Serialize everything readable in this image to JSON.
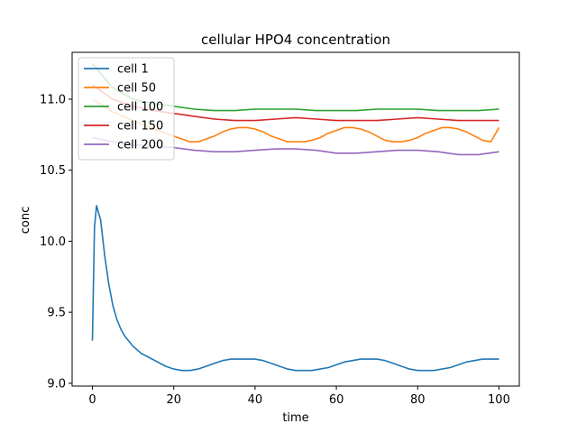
{
  "chart_data": {
    "type": "line",
    "title": "cellular HPO4 concentration",
    "xlabel": "time",
    "ylabel": "conc",
    "xlim": [
      -5,
      105
    ],
    "ylim": [
      8.98,
      11.33
    ],
    "xticks": [
      0,
      20,
      40,
      60,
      80,
      100
    ],
    "yticks": [
      9.0,
      9.5,
      10.0,
      10.5,
      11.0
    ],
    "xtick_labels": [
      "0",
      "20",
      "40",
      "60",
      "80",
      "100"
    ],
    "ytick_labels": [
      "9.0",
      "9.5",
      "10.0",
      "10.5",
      "11.0"
    ],
    "legend_position": "upper-left",
    "grid": false,
    "series": [
      {
        "name": "cell 1",
        "color": "#1f77b4",
        "x": [
          0,
          0.5,
          1,
          1.5,
          2,
          3,
          4,
          5,
          6,
          7,
          8,
          10,
          12,
          14,
          16,
          18,
          20,
          22,
          24,
          26,
          28,
          30,
          32,
          34,
          36,
          38,
          40,
          42,
          44,
          46,
          48,
          50,
          52,
          54,
          56,
          58,
          60,
          62,
          64,
          66,
          68,
          70,
          72,
          74,
          76,
          78,
          80,
          82,
          84,
          86,
          88,
          90,
          92,
          94,
          96,
          98,
          100
        ],
        "y": [
          9.3,
          10.1,
          10.25,
          10.2,
          10.15,
          9.9,
          9.7,
          9.55,
          9.45,
          9.38,
          9.33,
          9.26,
          9.21,
          9.18,
          9.15,
          9.12,
          9.1,
          9.09,
          9.09,
          9.1,
          9.12,
          9.14,
          9.16,
          9.17,
          9.17,
          9.17,
          9.17,
          9.16,
          9.14,
          9.12,
          9.1,
          9.09,
          9.09,
          9.09,
          9.1,
          9.11,
          9.13,
          9.15,
          9.16,
          9.17,
          9.17,
          9.17,
          9.16,
          9.14,
          9.12,
          9.1,
          9.09,
          9.09,
          9.09,
          9.1,
          9.11,
          9.13,
          9.15,
          9.16,
          9.17,
          9.17,
          9.17
        ]
      },
      {
        "name": "cell 50",
        "color": "#ff7f0e",
        "x": [
          0,
          5,
          10,
          15,
          18,
          20,
          22,
          24,
          26,
          28,
          30,
          32,
          34,
          36,
          38,
          40,
          42,
          44,
          46,
          48,
          50,
          52,
          54,
          56,
          58,
          60,
          62,
          64,
          66,
          68,
          70,
          72,
          74,
          76,
          78,
          80,
          82,
          84,
          86,
          88,
          90,
          92,
          94,
          96,
          98,
          100
        ],
        "y": [
          11.0,
          10.91,
          10.85,
          10.79,
          10.76,
          10.74,
          10.72,
          10.7,
          10.7,
          10.72,
          10.74,
          10.77,
          10.79,
          10.8,
          10.8,
          10.79,
          10.77,
          10.74,
          10.72,
          10.7,
          10.7,
          10.7,
          10.71,
          10.73,
          10.76,
          10.78,
          10.8,
          10.8,
          10.79,
          10.77,
          10.74,
          10.71,
          10.7,
          10.7,
          10.71,
          10.73,
          10.76,
          10.78,
          10.8,
          10.8,
          10.79,
          10.77,
          10.74,
          10.71,
          10.7,
          10.8
        ]
      },
      {
        "name": "cell 100",
        "color": "#2ca02c",
        "x": [
          0,
          5,
          10,
          15,
          20,
          25,
          30,
          35,
          40,
          45,
          50,
          55,
          60,
          65,
          70,
          75,
          80,
          85,
          90,
          95,
          100
        ],
        "y": [
          11.25,
          11.08,
          11.0,
          10.97,
          10.95,
          10.93,
          10.92,
          10.92,
          10.93,
          10.93,
          10.93,
          10.92,
          10.92,
          10.92,
          10.93,
          10.93,
          10.93,
          10.92,
          10.92,
          10.92,
          10.93
        ]
      },
      {
        "name": "cell 150",
        "color": "#d62728",
        "x": [
          0,
          5,
          10,
          15,
          20,
          25,
          30,
          35,
          40,
          45,
          50,
          55,
          60,
          65,
          70,
          75,
          80,
          85,
          90,
          95,
          100
        ],
        "y": [
          11.1,
          11.0,
          10.95,
          10.92,
          10.9,
          10.88,
          10.86,
          10.85,
          10.85,
          10.86,
          10.87,
          10.86,
          10.85,
          10.85,
          10.85,
          10.86,
          10.87,
          10.86,
          10.85,
          10.85,
          10.85
        ]
      },
      {
        "name": "cell 200",
        "color": "#9467bd",
        "x": [
          0,
          5,
          10,
          15,
          20,
          25,
          30,
          35,
          40,
          45,
          50,
          55,
          60,
          65,
          70,
          75,
          80,
          85,
          90,
          95,
          100
        ],
        "y": [
          10.73,
          10.7,
          10.68,
          10.67,
          10.66,
          10.64,
          10.63,
          10.63,
          10.64,
          10.65,
          10.65,
          10.64,
          10.62,
          10.62,
          10.63,
          10.64,
          10.64,
          10.63,
          10.61,
          10.61,
          10.63
        ]
      }
    ]
  }
}
